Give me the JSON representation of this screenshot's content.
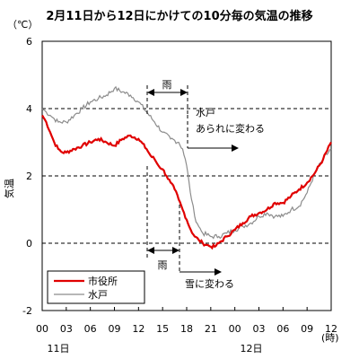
{
  "chart_data": {
    "type": "line",
    "title": "2月11日から12日にかけての10分毎の気温の推移",
    "ylabel": "気温",
    "yunit": "（℃）",
    "xunit": "(時)",
    "ylim": [
      -2,
      6
    ],
    "yticks": [
      "6",
      "4",
      "2",
      "0",
      "-2"
    ],
    "xticks": [
      "00",
      "03",
      "06",
      "09",
      "12",
      "15",
      "18",
      "21",
      "00",
      "03",
      "06",
      "09",
      "12"
    ],
    "day_labels": [
      "11日",
      "12日"
    ],
    "grid_dashed_y": [
      4,
      2,
      0
    ],
    "legend": {
      "placement": "bottom-left"
    },
    "series": [
      {
        "name": "市役所",
        "color": "#e00000",
        "x_hours": [
          0,
          0.5,
          1,
          1.5,
          2,
          2.5,
          3,
          4,
          5,
          6,
          7,
          8,
          9,
          10,
          11,
          12,
          13,
          13.5,
          14,
          14.5,
          15,
          15.5,
          16,
          16.5,
          17,
          17.5,
          18,
          18.5,
          19,
          19.5,
          20,
          20.5,
          21,
          21.5,
          22,
          23,
          24,
          25,
          26,
          27,
          28,
          29,
          30,
          31,
          32,
          33,
          34,
          35,
          36
        ],
        "values": [
          3.8,
          3.6,
          3.3,
          3.0,
          2.8,
          2.7,
          2.7,
          2.8,
          2.9,
          3.0,
          3.1,
          3.0,
          2.9,
          3.1,
          3.2,
          3.1,
          2.8,
          2.6,
          2.5,
          2.3,
          2.2,
          2.0,
          1.8,
          1.6,
          1.3,
          1.0,
          0.7,
          0.4,
          0.2,
          0.1,
          0.0,
          -0.05,
          -0.1,
          -0.1,
          0.0,
          0.2,
          0.4,
          0.6,
          0.8,
          0.9,
          1.0,
          1.2,
          1.2,
          1.4,
          1.6,
          1.8,
          2.1,
          2.5,
          3.0
        ]
      },
      {
        "name": "水戸",
        "color": "#8c8c8c",
        "x_hours": [
          0,
          0.5,
          1,
          1.5,
          2,
          3,
          4,
          5,
          6,
          7,
          8,
          9,
          10,
          11,
          12,
          13,
          14,
          15,
          16,
          17,
          17.5,
          18,
          18.3,
          18.6,
          19,
          19.5,
          20,
          21,
          22,
          23,
          24,
          25,
          26,
          27,
          28,
          29,
          30,
          31,
          32,
          33,
          34,
          35,
          36
        ],
        "values": [
          4.0,
          3.9,
          3.8,
          3.7,
          3.6,
          3.6,
          3.8,
          4.0,
          4.2,
          4.3,
          4.4,
          4.6,
          4.5,
          4.4,
          4.2,
          3.9,
          3.6,
          3.3,
          3.1,
          3.0,
          2.8,
          2.3,
          1.8,
          1.3,
          0.8,
          0.5,
          0.3,
          0.2,
          0.2,
          0.3,
          0.4,
          0.5,
          0.6,
          0.8,
          0.9,
          0.8,
          0.8,
          1.0,
          1.1,
          1.5,
          2.1,
          2.5,
          2.8
        ]
      }
    ],
    "annotations": {
      "rain_top": {
        "label": "雨",
        "from_hour": 13,
        "to_hour": 18
      },
      "rain_bottom": {
        "label": "雨",
        "from_hour": 13,
        "to_hour": 17
      },
      "mito_hail": {
        "line1": "水戸",
        "line2": "あられに変わる",
        "hour": 18
      },
      "snow": {
        "label": "雪に変わる",
        "hour": 17
      }
    }
  }
}
